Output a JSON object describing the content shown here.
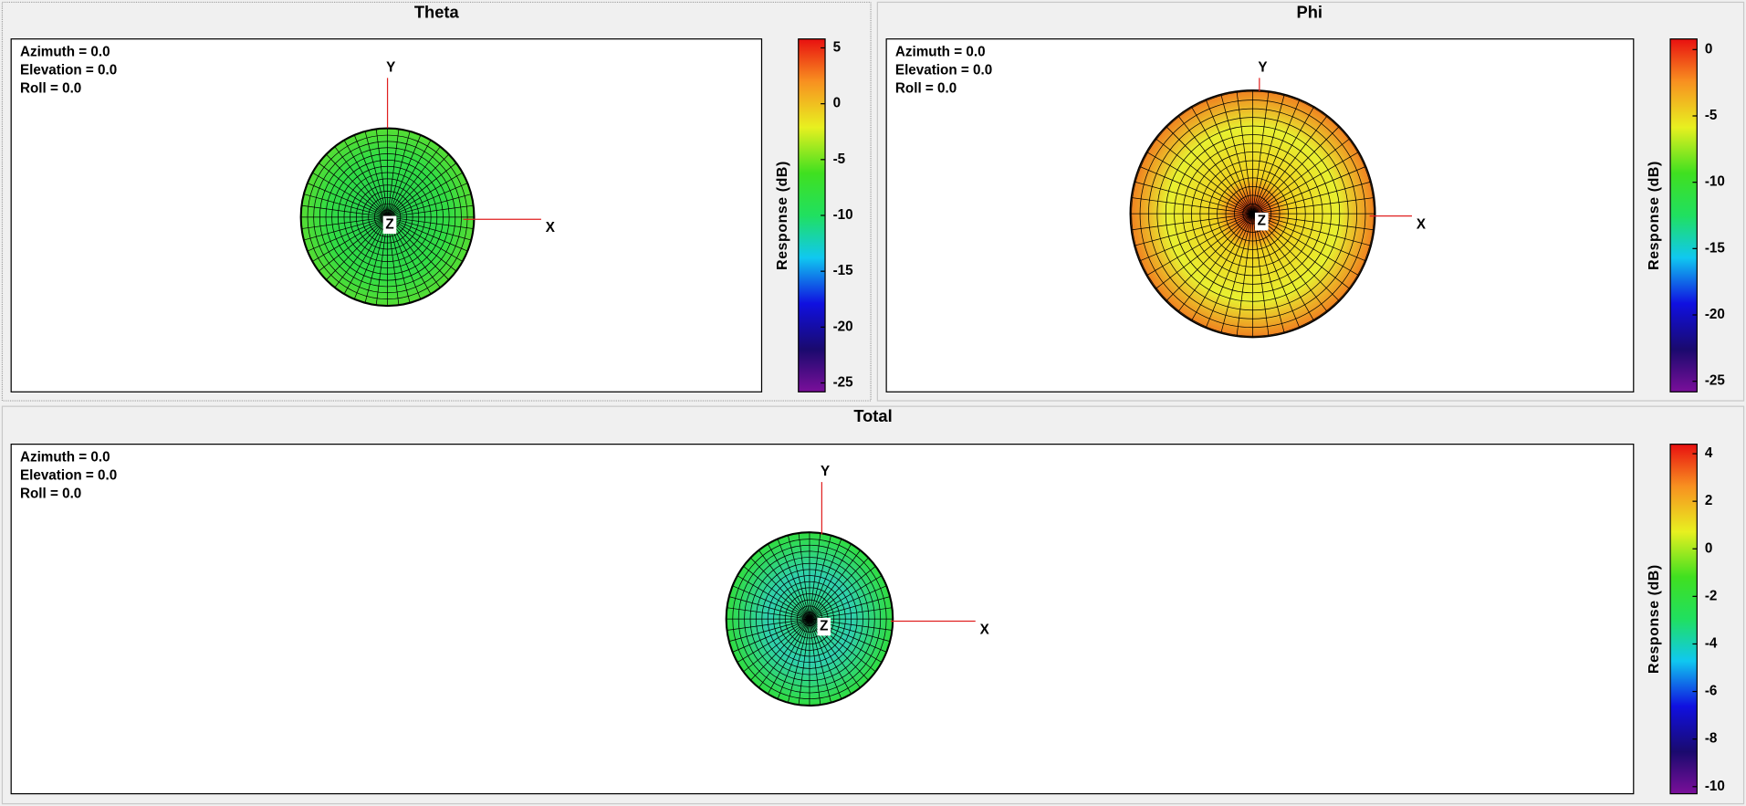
{
  "panels": [
    {
      "title": "Theta",
      "view": [
        "Azimuth = 0.0",
        "Elevation = 0.0",
        "Roll = 0.0"
      ],
      "axes": {
        "x": "X",
        "y": "Y",
        "z": "Z"
      },
      "colorbar": {
        "label": "Response (dB)",
        "range": [
          -25.8,
          5.8
        ],
        "ticks": [
          5,
          0,
          -5,
          -10,
          -15,
          -20,
          -25
        ]
      }
    },
    {
      "title": "Phi",
      "view": [
        "Azimuth = 0.0",
        "Elevation = 0.0",
        "Roll = 0.0"
      ],
      "axes": {
        "x": "X",
        "y": "Y",
        "z": "Z"
      },
      "colorbar": {
        "label": "Response (dB)",
        "range": [
          -25.8,
          0.8
        ],
        "ticks": [
          0,
          -5,
          -10,
          -15,
          -20,
          -25
        ]
      }
    },
    {
      "title": "Total",
      "view": [
        "Azimuth = 0.0",
        "Elevation = 0.0",
        "Roll = 0.0"
      ],
      "axes": {
        "x": "X",
        "y": "Y",
        "z": "Z"
      },
      "colorbar": {
        "label": "Response (dB)",
        "range": [
          -10.3,
          4.4
        ],
        "ticks": [
          4,
          2,
          0,
          -2,
          -4,
          -6,
          -8,
          -10
        ]
      }
    }
  ]
}
